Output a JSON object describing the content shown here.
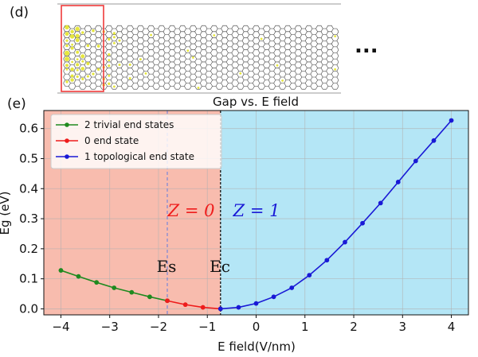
{
  "panel_d": {
    "label": "(d)",
    "ellipsis": "..."
  },
  "panel_e": {
    "label": "(e)"
  },
  "colors": {
    "trivial": "#1f8a1f",
    "zero": "#ee1c1c",
    "topological": "#1919d6",
    "region_left": "#f8bcae",
    "region_right": "#b4e6f6",
    "highlight_box": "#ee3a3a",
    "lattice": "#333333",
    "yellow": "#e3e32a"
  },
  "chart_data": {
    "type": "line",
    "title": "Gap vs. E field",
    "xlabel": "E field(V/nm)",
    "ylabel": "Eg (eV)",
    "xlim": [
      -4.35,
      4.35
    ],
    "ylim": [
      -0.02,
      0.66
    ],
    "xticks": [
      -4,
      -3,
      -2,
      -1,
      0,
      1,
      2,
      3,
      4
    ],
    "xtick_labels": [
      "−4",
      "−3",
      "−2",
      "−1",
      "0",
      "1",
      "2",
      "3",
      "4"
    ],
    "yticks": [
      0.0,
      0.1,
      0.2,
      0.3,
      0.4,
      0.5,
      0.6
    ],
    "ytick_labels": [
      "0.0",
      "0.1",
      "0.2",
      "0.3",
      "0.4",
      "0.5",
      "0.6"
    ],
    "grid": true,
    "legend_position": "top-left",
    "regions": [
      {
        "name": "Z=0 region",
        "from": -4.35,
        "to": -0.73,
        "color_key": "region_left"
      },
      {
        "name": "Z=1 region",
        "from": -0.73,
        "to": 4.35,
        "color_key": "region_right"
      }
    ],
    "vlines": [
      {
        "name": "Es",
        "x": -1.82,
        "style": "dashed",
        "color": "#7a86d8"
      },
      {
        "name": "Ec",
        "x": -0.73,
        "style": "dashed",
        "color": "#222222"
      }
    ],
    "annotations": [
      {
        "name": "z0",
        "text": "Z = 0",
        "color_key": "zero"
      },
      {
        "name": "z1",
        "text": "Z = 1",
        "color_key": "topological"
      },
      {
        "name": "es",
        "text": "Es"
      },
      {
        "name": "ec",
        "text": "Ec"
      }
    ],
    "series": [
      {
        "name": "2 trivial end states",
        "color_key": "trivial",
        "x": [
          -4.0,
          -3.64,
          -3.27,
          -2.91,
          -2.55,
          -2.18,
          -1.82
        ],
        "y": [
          0.128,
          0.108,
          0.088,
          0.07,
          0.055,
          0.04,
          0.027
        ]
      },
      {
        "name": "0 end state",
        "color_key": "zero",
        "x": [
          -1.82,
          -1.45,
          -1.09,
          -0.73
        ],
        "y": [
          0.027,
          0.014,
          0.005,
          0.0
        ]
      },
      {
        "name": "1 topological end state",
        "color_key": "topological",
        "x": [
          -0.73,
          -0.36,
          0.0,
          0.36,
          0.73,
          1.09,
          1.45,
          1.82,
          2.18,
          2.55,
          2.91,
          3.27,
          3.64,
          4.0
        ],
        "y": [
          0.0,
          0.005,
          0.018,
          0.04,
          0.07,
          0.112,
          0.162,
          0.222,
          0.285,
          0.352,
          0.422,
          0.492,
          0.56,
          0.627
        ]
      }
    ]
  }
}
